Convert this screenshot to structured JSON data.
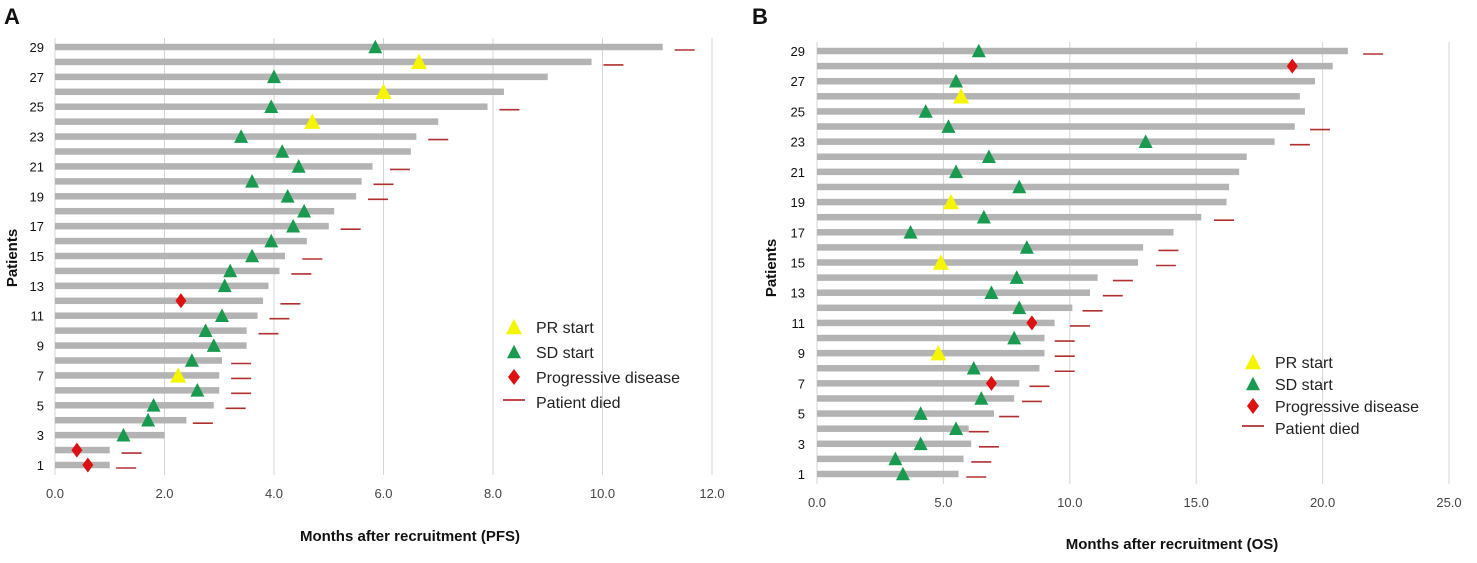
{
  "colors": {
    "bar": "#b3b3b3",
    "grid": "#d4d4d4",
    "pr": "#f5f500",
    "sd": "#1a9a50",
    "pd": "#dd1111",
    "died": "#b03030"
  },
  "chart_data": [
    {
      "panel_label": "A",
      "type": "swimmer",
      "xlabel": "Months after recruitment (PFS)",
      "ylabel": "Patients",
      "xlim": [
        0,
        12
      ],
      "ylim": [
        0.5,
        29.5
      ],
      "xticks": [
        "0.0",
        "2.0",
        "4.0",
        "6.0",
        "8.0",
        "10.0",
        "12.0"
      ],
      "yticks": [
        "1",
        "3",
        "5",
        "7",
        "9",
        "11",
        "13",
        "15",
        "17",
        "19",
        "21",
        "23",
        "25",
        "27",
        "29"
      ],
      "legend": {
        "position": "right",
        "items": [
          "PR start",
          "SD start",
          "Progressive disease",
          "Patient died"
        ]
      },
      "patients": [
        {
          "id": 1,
          "end": 1.0,
          "sd": null,
          "pr": null,
          "pd": 0.6,
          "died": 1.3
        },
        {
          "id": 2,
          "end": 1.0,
          "sd": null,
          "pr": null,
          "pd": 0.4,
          "died": 1.4
        },
        {
          "id": 3,
          "end": 2.0,
          "sd": 1.25,
          "pr": null,
          "pd": null,
          "died": null
        },
        {
          "id": 4,
          "end": 2.4,
          "sd": 1.7,
          "pr": null,
          "pd": null,
          "died": 2.7
        },
        {
          "id": 5,
          "end": 2.9,
          "sd": 1.8,
          "pr": null,
          "pd": null,
          "died": 3.3
        },
        {
          "id": 6,
          "end": 3.0,
          "sd": 2.6,
          "pr": null,
          "pd": null,
          "died": 3.4
        },
        {
          "id": 7,
          "end": 3.0,
          "sd": null,
          "pr": 2.25,
          "pd": null,
          "died": 3.4
        },
        {
          "id": 8,
          "end": 3.05,
          "sd": 2.5,
          "pr": null,
          "pd": null,
          "died": 3.4
        },
        {
          "id": 9,
          "end": 3.5,
          "sd": 2.9,
          "pr": null,
          "pd": null,
          "died": null
        },
        {
          "id": 10,
          "end": 3.5,
          "sd": 2.75,
          "pr": null,
          "pd": null,
          "died": 3.9
        },
        {
          "id": 11,
          "end": 3.7,
          "sd": 3.05,
          "pr": null,
          "pd": null,
          "died": 4.1
        },
        {
          "id": 12,
          "end": 3.8,
          "sd": null,
          "pr": null,
          "pd": 2.3,
          "died": 4.3
        },
        {
          "id": 13,
          "end": 3.9,
          "sd": 3.1,
          "pr": null,
          "pd": null,
          "died": null
        },
        {
          "id": 14,
          "end": 4.1,
          "sd": 3.2,
          "pr": null,
          "pd": null,
          "died": 4.5
        },
        {
          "id": 15,
          "end": 4.2,
          "sd": 3.6,
          "pr": null,
          "pd": null,
          "died": 4.7
        },
        {
          "id": 16,
          "end": 4.6,
          "sd": 3.95,
          "pr": null,
          "pd": null,
          "died": null
        },
        {
          "id": 17,
          "end": 5.0,
          "sd": 4.35,
          "pr": null,
          "pd": null,
          "died": 5.4
        },
        {
          "id": 18,
          "end": 5.1,
          "sd": 4.55,
          "pr": null,
          "pd": null,
          "died": null
        },
        {
          "id": 19,
          "end": 5.5,
          "sd": 4.25,
          "pr": null,
          "pd": null,
          "died": 5.9
        },
        {
          "id": 20,
          "end": 5.6,
          "sd": 3.6,
          "pr": null,
          "pd": null,
          "died": 6.0
        },
        {
          "id": 21,
          "end": 5.8,
          "sd": 4.45,
          "pr": null,
          "pd": null,
          "died": 6.3
        },
        {
          "id": 22,
          "end": 6.5,
          "sd": 4.15,
          "pr": null,
          "pd": null,
          "died": null
        },
        {
          "id": 23,
          "end": 6.6,
          "sd": 3.4,
          "pr": null,
          "pd": null,
          "died": 7.0
        },
        {
          "id": 24,
          "end": 7.0,
          "sd": null,
          "pr": 4.7,
          "pd": null,
          "died": null
        },
        {
          "id": 25,
          "end": 7.9,
          "sd": 3.95,
          "pr": null,
          "pd": null,
          "died": 8.3
        },
        {
          "id": 26,
          "end": 8.2,
          "sd": null,
          "pr": 6.0,
          "pd": null,
          "died": null
        },
        {
          "id": 27,
          "end": 9.0,
          "sd": 4.0,
          "pr": null,
          "pd": null,
          "died": null
        },
        {
          "id": 28,
          "end": 9.8,
          "sd": null,
          "pr": 6.65,
          "pd": null,
          "died": 10.2
        },
        {
          "id": 29,
          "end": 11.1,
          "sd": 5.85,
          "pr": null,
          "pd": null,
          "died": 11.5
        }
      ]
    },
    {
      "panel_label": "B",
      "type": "swimmer",
      "xlabel": "Months after recruitment (OS)",
      "ylabel": "Patients",
      "xlim": [
        0,
        25
      ],
      "ylim": [
        0.5,
        29.5
      ],
      "xticks": [
        "0.0",
        "5.0",
        "10.0",
        "15.0",
        "20.0",
        "25.0"
      ],
      "yticks": [
        "1",
        "3",
        "5",
        "7",
        "9",
        "11",
        "13",
        "15",
        "17",
        "19",
        "21",
        "23",
        "25",
        "27",
        "29"
      ],
      "legend": {
        "position": "bottom-right",
        "items": [
          "PR start",
          "SD start",
          "Progressive disease",
          "Patient died"
        ]
      },
      "patients": [
        {
          "id": 1,
          "end": 5.6,
          "sd": 3.4,
          "pr": null,
          "pd": null,
          "died": 6.3
        },
        {
          "id": 2,
          "end": 5.8,
          "sd": 3.1,
          "pr": null,
          "pd": null,
          "died": 6.5
        },
        {
          "id": 3,
          "end": 6.1,
          "sd": 4.1,
          "pr": null,
          "pd": null,
          "died": 6.8
        },
        {
          "id": 4,
          "end": 6.0,
          "sd": 5.5,
          "pr": null,
          "pd": null,
          "died": 6.4
        },
        {
          "id": 5,
          "end": 7.0,
          "sd": 4.1,
          "pr": null,
          "pd": null,
          "died": 7.6
        },
        {
          "id": 6,
          "end": 7.8,
          "sd": 6.5,
          "pr": null,
          "pd": null,
          "died": 8.5
        },
        {
          "id": 7,
          "end": 8.0,
          "sd": null,
          "pr": null,
          "pd": 6.9,
          "died": 8.8
        },
        {
          "id": 8,
          "end": 8.8,
          "sd": 6.2,
          "pr": null,
          "pd": null,
          "died": 9.8
        },
        {
          "id": 9,
          "end": 9.0,
          "sd": null,
          "pr": 4.8,
          "pd": null,
          "died": 9.8
        },
        {
          "id": 10,
          "end": 9.0,
          "sd": 7.8,
          "pr": null,
          "pd": null,
          "died": 9.8
        },
        {
          "id": 11,
          "end": 9.4,
          "sd": null,
          "pr": null,
          "pd": 8.5,
          "died": 10.4
        },
        {
          "id": 12,
          "end": 10.1,
          "sd": 8.0,
          "pr": null,
          "pd": null,
          "died": 10.9
        },
        {
          "id": 13,
          "end": 10.8,
          "sd": 6.9,
          "pr": null,
          "pd": null,
          "died": 11.7
        },
        {
          "id": 14,
          "end": 11.1,
          "sd": 7.9,
          "pr": null,
          "pd": null,
          "died": 12.1
        },
        {
          "id": 15,
          "end": 12.7,
          "sd": null,
          "pr": 4.9,
          "pd": null,
          "died": 13.8
        },
        {
          "id": 16,
          "end": 12.9,
          "sd": 8.3,
          "pr": null,
          "pd": null,
          "died": 13.9
        },
        {
          "id": 17,
          "end": 14.1,
          "sd": 3.7,
          "pr": null,
          "pd": null,
          "died": null
        },
        {
          "id": 18,
          "end": 15.2,
          "sd": 6.6,
          "pr": null,
          "pd": null,
          "died": 16.1
        },
        {
          "id": 19,
          "end": 16.2,
          "sd": null,
          "pr": 5.3,
          "pd": null,
          "died": null
        },
        {
          "id": 20,
          "end": 16.3,
          "sd": 8.0,
          "pr": null,
          "pd": null,
          "died": null
        },
        {
          "id": 21,
          "end": 16.7,
          "sd": 5.5,
          "pr": null,
          "pd": null,
          "died": null
        },
        {
          "id": 22,
          "end": 17.0,
          "sd": 6.8,
          "pr": null,
          "pd": null,
          "died": null
        },
        {
          "id": 23,
          "end": 18.1,
          "sd": 13.0,
          "pr": null,
          "pd": null,
          "died": 19.1
        },
        {
          "id": 24,
          "end": 18.9,
          "sd": 5.2,
          "pr": null,
          "pd": null,
          "died": 19.9
        },
        {
          "id": 25,
          "end": 19.3,
          "sd": 4.3,
          "pr": null,
          "pd": null,
          "died": null
        },
        {
          "id": 26,
          "end": 19.1,
          "sd": null,
          "pr": 5.7,
          "pd": null,
          "died": null
        },
        {
          "id": 27,
          "end": 19.7,
          "sd": 5.5,
          "pr": null,
          "pd": null,
          "died": null
        },
        {
          "id": 28,
          "end": 20.4,
          "sd": null,
          "pr": null,
          "pd": 18.8,
          "died": null
        },
        {
          "id": 29,
          "end": 21.0,
          "sd": 6.4,
          "pr": null,
          "pd": null,
          "died": 22.0
        }
      ]
    }
  ]
}
